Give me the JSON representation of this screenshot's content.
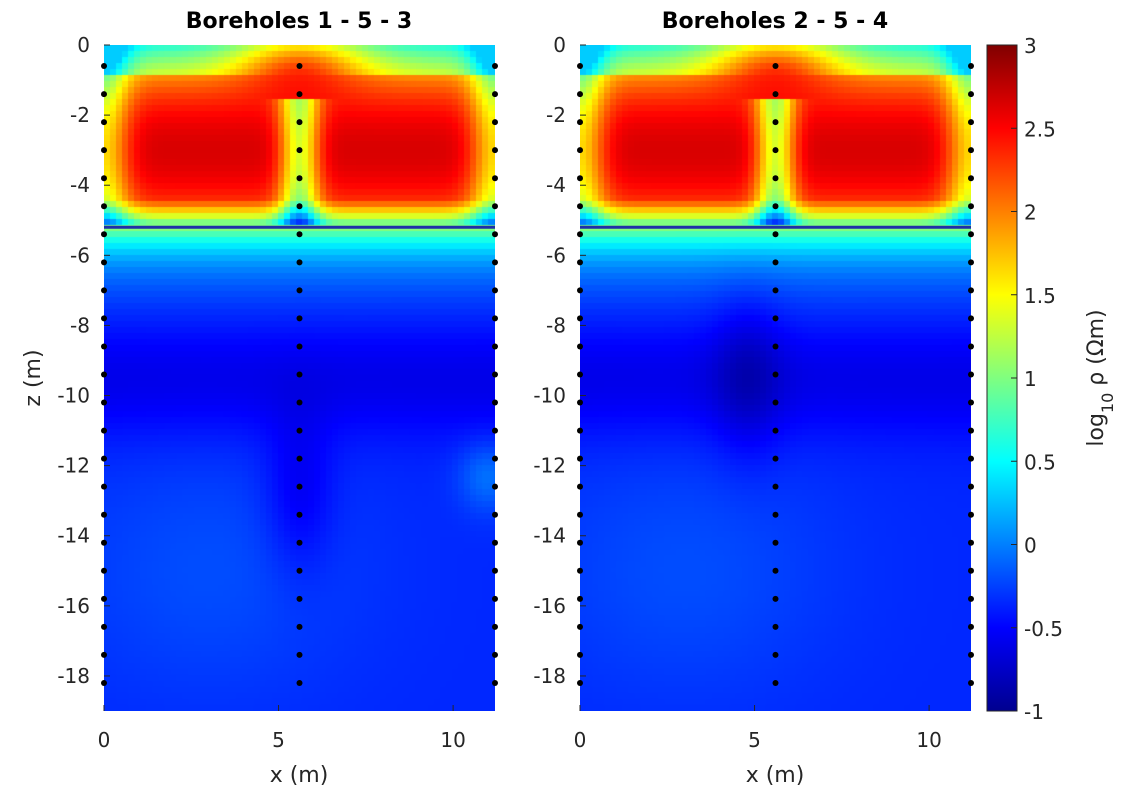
{
  "chart_data": {
    "type": "heatmap",
    "colormap": "jet",
    "panels": [
      {
        "title": "Boreholes 1 - 5 - 3",
        "xlabel": "x (m)",
        "ylabel": "z (m)",
        "xlim": [
          0,
          11.2
        ],
        "ylim": [
          -19,
          0
        ],
        "xticks": [
          0,
          5,
          10
        ],
        "xtick_labels": [
          "0",
          "5",
          "10"
        ],
        "yticks": [
          0,
          -2,
          -4,
          -6,
          -8,
          -10,
          -12,
          -14,
          -16,
          -18
        ],
        "ytick_labels": [
          "0",
          "-2",
          "-4",
          "-6",
          "-8",
          "-10",
          "-12",
          "-14",
          "-16",
          "-18"
        ],
        "boreholes_x": [
          0,
          5.6,
          11.2
        ],
        "interface_z": -5.2,
        "anomaly": {
          "x": 5.6,
          "z": -12.8
        }
      },
      {
        "title": "Boreholes 2 - 5 - 4",
        "xlabel": "x (m)",
        "ylabel": "",
        "xlim": [
          0,
          11.2
        ],
        "ylim": [
          -19,
          0
        ],
        "xticks": [
          0,
          5,
          10
        ],
        "xtick_labels": [
          "0",
          "5",
          "10"
        ],
        "yticks": [
          0,
          -2,
          -4,
          -6,
          -8,
          -10,
          -12,
          -14,
          -16,
          -18
        ],
        "ytick_labels": [
          "0",
          "-2",
          "-4",
          "-6",
          "-8",
          "-10",
          "-12",
          "-14",
          "-16",
          "-18"
        ],
        "boreholes_x": [
          0,
          5.6,
          11.2
        ],
        "interface_z": -5.2,
        "anomaly": {
          "x": 4.8,
          "z": -9.5
        }
      }
    ],
    "electrode_z": {
      "start": -0.6,
      "step": -0.8,
      "count": 23
    },
    "colorbar": {
      "label_main": "log",
      "label_sub": "10",
      "label_rest": " ρ (Ωm)",
      "range": [
        -1,
        3
      ],
      "ticks": [
        3,
        2.5,
        2,
        1.5,
        1,
        0.5,
        0,
        -0.5,
        -1
      ],
      "tick_labels": [
        "3",
        "2.5",
        "2",
        "1.5",
        "1",
        "0.5",
        "0",
        "-0.5",
        "-1"
      ]
    },
    "colors": {
      "interface_line": "#1f2fa8",
      "electrode": "#000000"
    }
  }
}
